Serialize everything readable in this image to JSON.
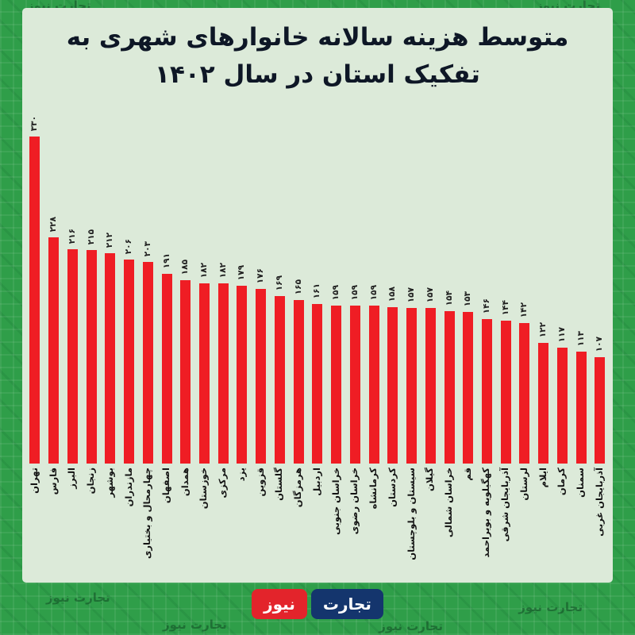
{
  "title": {
    "line1": "متوسط هزینه سالانه خانوارهای شهری به",
    "line2": "تفکیک استان در سال ۱۴۰۲"
  },
  "watermark_text": "تجارت نیوز",
  "colors": {
    "frame_green": "#2f9e49",
    "panel_mint": "#dcead9",
    "bar_red": "#ef1d24",
    "title_dark": "#0e1726",
    "logo_blue": "#14356d",
    "logo_red": "#e3242b"
  },
  "chart_data": {
    "type": "bar",
    "title": "متوسط هزینه سالانه خانوارهای شهری به تفکیک استان در سال ۱۴۰۲",
    "xlabel": "",
    "ylabel": "",
    "ylim": [
      0,
      340
    ],
    "grid": false,
    "legend": false,
    "bar_color": "#ef1d24",
    "categories": [
      "تهران",
      "فارس",
      "البرز",
      "زنجان",
      "بوشهر",
      "مازندران",
      "چهارمحال و بختیاری",
      "اصفهان",
      "همدان",
      "خوزستان",
      "مرکزی",
      "یزد",
      "قزوین",
      "گلستان",
      "هرمزگان",
      "اردبیل",
      "خراسان جنوبی",
      "خراسان رضوی",
      "کرمانشاه",
      "کردستان",
      "سیستان و بلوچستان",
      "گیلان",
      "خراسان شمالی",
      "قم",
      "کهگیلویه و بویراحمد",
      "آذربایجان شرقی",
      "لرستان",
      "ایلام",
      "کرمان",
      "سمنان",
      "آذربایجان غربی"
    ],
    "values": [
      330,
      228,
      216,
      215,
      212,
      206,
      203,
      191,
      185,
      182,
      182,
      179,
      176,
      169,
      165,
      161,
      159,
      159,
      159,
      158,
      157,
      157,
      154,
      153,
      146,
      144,
      142,
      122,
      117,
      113,
      107
    ],
    "value_labels": [
      "۳۳۰",
      "۲۲۸",
      "۲۱۶",
      "۲۱۵",
      "۲۱۲",
      "۲۰۶",
      "۲۰۳",
      "۱۹۱",
      "۱۸۵",
      "۱۸۲",
      "۱۸۲",
      "۱۷۹",
      "۱۷۶",
      "۱۶۹",
      "۱۶۵",
      "۱۶۱",
      "۱۵۹",
      "۱۵۹",
      "۱۵۹",
      "۱۵۸",
      "۱۵۷",
      "۱۵۷",
      "۱۵۴",
      "۱۵۳",
      "۱۴۶",
      "۱۴۴",
      "۱۴۲",
      "۱۲۲",
      "۱۱۷",
      "۱۱۳",
      "۱۰۷"
    ]
  },
  "footer": {
    "logo": {
      "first_word": "تجارت",
      "first_bg": "#14356d",
      "second_word": "نیوز",
      "second_bg": "#e3242b"
    }
  }
}
